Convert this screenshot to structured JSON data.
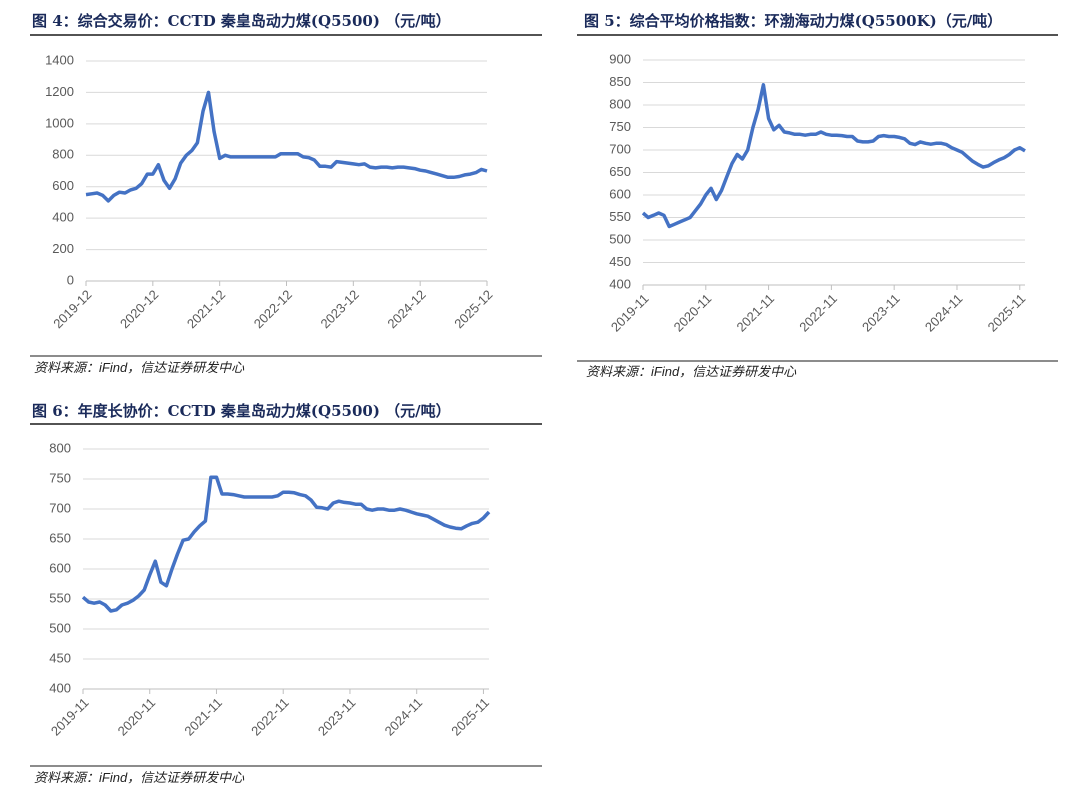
{
  "chart_data": [
    {
      "type": "line",
      "title": "图 4：综合交易价：CCTD 秦皇岛动力煤(Q5500) （元/吨）",
      "source": "资料来源：iFind，信达证券研发中心",
      "categories": [
        "2019-12",
        null,
        null,
        null,
        null,
        null,
        null,
        null,
        null,
        null,
        null,
        null,
        "2020-12",
        null,
        null,
        null,
        null,
        null,
        null,
        null,
        null,
        null,
        null,
        null,
        "2021-12",
        null,
        null,
        null,
        null,
        null,
        null,
        null,
        null,
        null,
        null,
        null,
        "2022-12",
        null,
        null,
        null,
        null,
        null,
        null,
        null,
        null,
        null,
        null,
        null,
        "2023-12",
        null,
        null,
        null,
        null,
        null,
        null,
        null,
        null,
        null,
        null,
        null,
        "2024-12",
        null,
        null,
        null,
        null,
        null,
        null,
        null,
        null,
        null,
        null,
        null,
        "2025-12"
      ],
      "values": [
        550,
        555,
        560,
        545,
        510,
        545,
        565,
        560,
        580,
        590,
        620,
        680,
        680,
        740,
        640,
        590,
        650,
        750,
        800,
        830,
        880,
        1080,
        1200,
        950,
        780,
        800,
        790,
        790,
        790,
        790,
        790,
        790,
        790,
        790,
        790,
        810,
        810,
        810,
        810,
        790,
        785,
        770,
        730,
        730,
        725,
        760,
        755,
        750,
        745,
        740,
        745,
        725,
        720,
        725,
        725,
        720,
        725,
        725,
        720,
        715,
        705,
        700,
        690,
        680,
        670,
        660,
        660,
        665,
        675,
        680,
        690,
        710,
        700
      ],
      "color": "#4472c4",
      "ylim": [
        0,
        1400
      ],
      "yticks": [
        0,
        200,
        400,
        600,
        800,
        1000,
        1200,
        1400
      ],
      "grid": true
    },
    {
      "type": "line",
      "title": "图 5：综合平均价格指数：环渤海动力煤(Q5500K)（元/吨）",
      "source": "资料来源：iFind，信达证券研发中心",
      "categories": [
        "2019-11",
        null,
        null,
        null,
        null,
        null,
        null,
        null,
        null,
        null,
        null,
        null,
        "2020-11",
        null,
        null,
        null,
        null,
        null,
        null,
        null,
        null,
        null,
        null,
        null,
        "2021-11",
        null,
        null,
        null,
        null,
        null,
        null,
        null,
        null,
        null,
        null,
        null,
        "2022-11",
        null,
        null,
        null,
        null,
        null,
        null,
        null,
        null,
        null,
        null,
        null,
        "2023-11",
        null,
        null,
        null,
        null,
        null,
        null,
        null,
        null,
        null,
        null,
        null,
        "2024-11",
        null,
        null,
        null,
        null,
        null,
        null,
        null,
        null,
        null,
        null,
        null,
        "2025-11",
        null
      ],
      "values": [
        560,
        550,
        555,
        560,
        555,
        530,
        535,
        540,
        545,
        550,
        565,
        580,
        600,
        615,
        590,
        610,
        640,
        670,
        690,
        680,
        700,
        750,
        790,
        845,
        770,
        745,
        755,
        740,
        738,
        735,
        735,
        733,
        735,
        735,
        740,
        735,
        733,
        733,
        732,
        730,
        730,
        720,
        718,
        718,
        720,
        730,
        732,
        730,
        730,
        728,
        725,
        715,
        712,
        718,
        715,
        713,
        715,
        715,
        712,
        705,
        700,
        695,
        685,
        675,
        668,
        662,
        665,
        672,
        678,
        683,
        690,
        700,
        705,
        698
      ],
      "color": "#4472c4",
      "ylim": [
        400,
        900
      ],
      "yticks": [
        400,
        450,
        500,
        550,
        600,
        650,
        700,
        750,
        800,
        850,
        900
      ],
      "grid": true
    },
    {
      "type": "line",
      "title": "图 6：年度长协价：CCTD 秦皇岛动力煤(Q5500) （元/吨）",
      "source": "资料来源：iFind，信达证券研发中心",
      "categories": [
        "2019-11",
        null,
        null,
        null,
        null,
        null,
        null,
        null,
        null,
        null,
        null,
        null,
        "2020-11",
        null,
        null,
        null,
        null,
        null,
        null,
        null,
        null,
        null,
        null,
        null,
        "2021-11",
        null,
        null,
        null,
        null,
        null,
        null,
        null,
        null,
        null,
        null,
        null,
        "2022-11",
        null,
        null,
        null,
        null,
        null,
        null,
        null,
        null,
        null,
        null,
        null,
        "2023-11",
        null,
        null,
        null,
        null,
        null,
        null,
        null,
        null,
        null,
        null,
        null,
        "2024-11",
        null,
        null,
        null,
        null,
        null,
        null,
        null,
        null,
        null,
        null,
        null,
        "2025-11",
        null
      ],
      "values": [
        553,
        545,
        543,
        545,
        540,
        530,
        532,
        540,
        543,
        548,
        555,
        565,
        590,
        613,
        578,
        572,
        600,
        625,
        648,
        650,
        662,
        672,
        680,
        753,
        753,
        725,
        725,
        724,
        722,
        720,
        720,
        720,
        720,
        720,
        720,
        722,
        728,
        728,
        727,
        724,
        722,
        715,
        703,
        702,
        700,
        710,
        713,
        711,
        710,
        708,
        708,
        700,
        698,
        700,
        700,
        698,
        698,
        700,
        698,
        695,
        692,
        690,
        688,
        683,
        678,
        673,
        670,
        668,
        667,
        672,
        676,
        678,
        685,
        695
      ],
      "color": "#4472c4",
      "ylim": [
        400,
        800
      ],
      "yticks": [
        400,
        450,
        500,
        550,
        600,
        650,
        700,
        750,
        800
      ],
      "grid": true
    }
  ]
}
